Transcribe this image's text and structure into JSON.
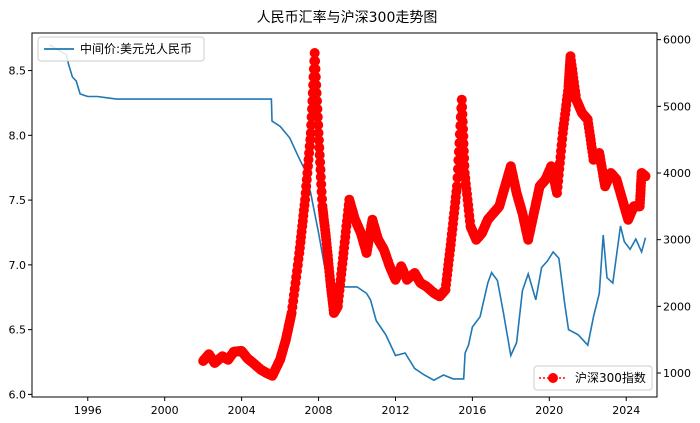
{
  "chart_data": {
    "type": "line",
    "title": "人民币汇率与沪深300走势图",
    "x_ticks": [
      "1996",
      "2000",
      "2004",
      "2008",
      "2012",
      "2016",
      "2020",
      "2024"
    ],
    "y_left": {
      "ylim": [
        5.98,
        8.79
      ],
      "ticks": [
        "6.0",
        "6.5",
        "7.0",
        "7.5",
        "8.0",
        "8.5"
      ]
    },
    "y_right": {
      "ylim": [
        640,
        6100
      ],
      "ticks": [
        "1000",
        "2000",
        "3000",
        "4000",
        "5000",
        "6000"
      ]
    },
    "xlim": [
      1993.1,
      2025.6
    ],
    "legend_top": {
      "position": "top-left"
    },
    "legend_bottom": {
      "position": "bottom-right"
    },
    "series": [
      {
        "name": "中间价:美元兑人民币",
        "axis": "left",
        "color": "#1f77b4",
        "x": [
          1994.0,
          1994.9,
          1995.0,
          1995.2,
          1995.4,
          1995.6,
          1995.8,
          1996.0,
          1996.5,
          1997.0,
          1997.5,
          1998.0,
          1999.0,
          2000.0,
          2001.0,
          2002.0,
          2003.0,
          2004.0,
          2005.0,
          2005.55,
          2005.58,
          2006.0,
          2006.5,
          2007.0,
          2007.3,
          2007.6,
          2008.0,
          2008.3,
          2008.6,
          2008.8,
          2009.0,
          2009.5,
          2010.0,
          2010.5,
          2010.7,
          2011.0,
          2011.5,
          2012.0,
          2012.5,
          2013.0,
          2013.5,
          2014.0,
          2014.5,
          2015.0,
          2015.55,
          2015.62,
          2015.8,
          2016.0,
          2016.4,
          2016.8,
          2017.0,
          2017.3,
          2017.6,
          2018.0,
          2018.3,
          2018.6,
          2018.9,
          2019.3,
          2019.6,
          2019.9,
          2020.2,
          2020.5,
          2020.8,
          2021.0,
          2021.5,
          2022.0,
          2022.3,
          2022.6,
          2022.8,
          2023.0,
          2023.3,
          2023.7,
          2023.9,
          2024.2,
          2024.5,
          2024.8,
          2025.0
        ],
        "y": [
          8.7,
          8.62,
          8.55,
          8.45,
          8.42,
          8.32,
          8.31,
          8.3,
          8.3,
          8.29,
          8.28,
          8.28,
          8.28,
          8.28,
          8.28,
          8.28,
          8.28,
          8.28,
          8.28,
          8.28,
          8.11,
          8.07,
          7.98,
          7.82,
          7.73,
          7.55,
          7.25,
          7.0,
          6.84,
          6.83,
          6.83,
          6.83,
          6.83,
          6.78,
          6.73,
          6.57,
          6.46,
          6.3,
          6.32,
          6.2,
          6.15,
          6.11,
          6.15,
          6.12,
          6.12,
          6.32,
          6.38,
          6.52,
          6.6,
          6.86,
          6.94,
          6.88,
          6.64,
          6.3,
          6.4,
          6.8,
          6.93,
          6.73,
          6.98,
          7.03,
          7.1,
          7.05,
          6.7,
          6.5,
          6.46,
          6.38,
          6.6,
          6.78,
          7.23,
          6.9,
          6.86,
          7.3,
          7.18,
          7.12,
          7.2,
          7.1,
          7.21
        ]
      },
      {
        "name": "沪深300指数",
        "axis": "right",
        "color": "#ff0000",
        "x": [
          2002.0,
          2002.3,
          2002.6,
          2003.0,
          2003.3,
          2003.6,
          2004.0,
          2004.3,
          2004.6,
          2005.0,
          2005.3,
          2005.6,
          2006.0,
          2006.3,
          2006.6,
          2007.0,
          2007.3,
          2007.6,
          2007.8,
          2008.0,
          2008.2,
          2008.4,
          2008.6,
          2008.8,
          2009.0,
          2009.3,
          2009.6,
          2009.9,
          2010.2,
          2010.5,
          2010.8,
          2011.1,
          2011.4,
          2011.7,
          2012.0,
          2012.3,
          2012.6,
          2013.0,
          2013.3,
          2013.6,
          2014.0,
          2014.3,
          2014.6,
          2014.9,
          2015.2,
          2015.45,
          2015.6,
          2015.9,
          2016.2,
          2016.5,
          2016.8,
          2017.1,
          2017.4,
          2017.7,
          2018.0,
          2018.3,
          2018.6,
          2018.9,
          2019.2,
          2019.5,
          2019.8,
          2020.1,
          2020.4,
          2020.7,
          2021.0,
          2021.1,
          2021.4,
          2021.7,
          2022.0,
          2022.3,
          2022.6,
          2022.9,
          2023.2,
          2023.5,
          2023.8,
          2024.1,
          2024.4,
          2024.7,
          2024.8,
          2025.0
        ],
        "y": [
          1180,
          1280,
          1150,
          1250,
          1200,
          1320,
          1330,
          1220,
          1150,
          1050,
          1000,
          960,
          1200,
          1500,
          1900,
          2800,
          3600,
          4600,
          5800,
          4600,
          3500,
          3000,
          2400,
          1900,
          2000,
          2800,
          3600,
          3300,
          3100,
          2800,
          3300,
          3000,
          2850,
          2600,
          2400,
          2600,
          2400,
          2500,
          2350,
          2300,
          2200,
          2150,
          2250,
          3000,
          3800,
          5100,
          4000,
          3200,
          3000,
          3100,
          3300,
          3400,
          3500,
          3800,
          4100,
          3700,
          3400,
          3000,
          3400,
          3800,
          3900,
          4100,
          3700,
          4600,
          5300,
          5750,
          5100,
          4900,
          4800,
          4200,
          4300,
          3800,
          4000,
          3900,
          3600,
          3300,
          3500,
          3500,
          4000,
          3950
        ]
      }
    ]
  }
}
